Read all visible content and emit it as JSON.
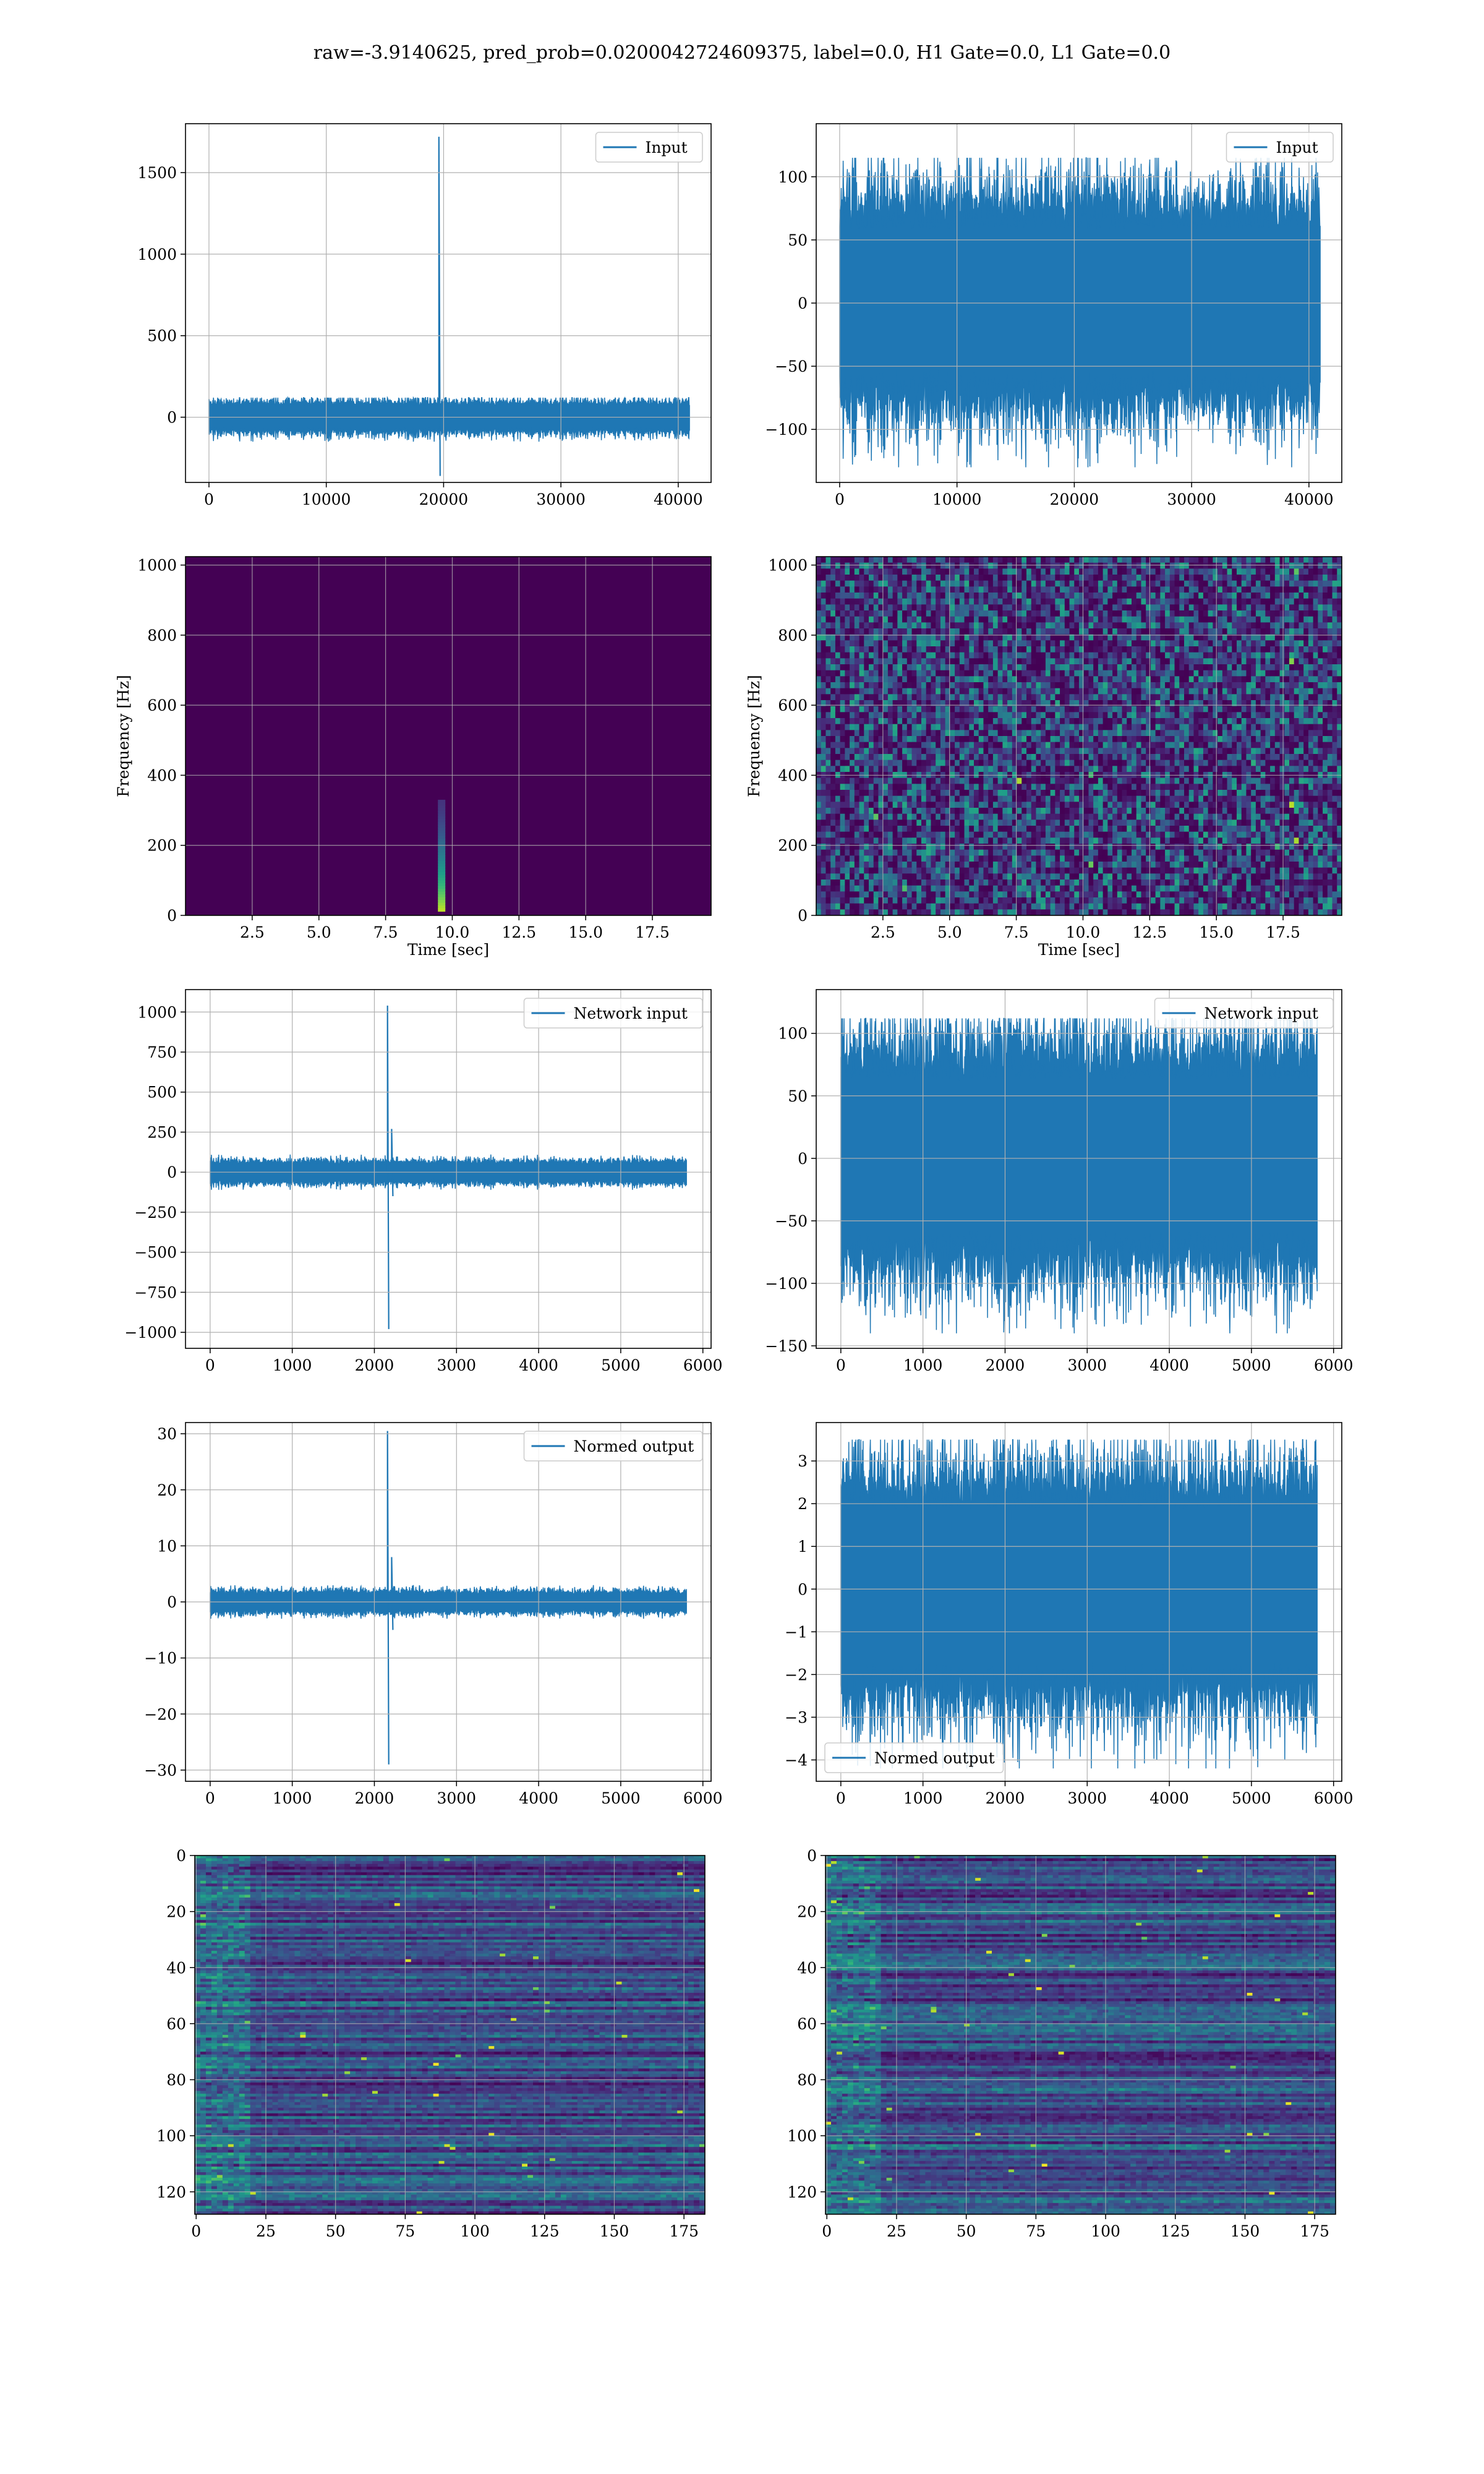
{
  "suptitle": "raw=-3.9140625, pred_prob=0.0200042724609375, label=0.0, H1 Gate=0.0, L1 Gate=0.0",
  "colors": {
    "line": "#1f77b4",
    "grid": "#b0b0b0",
    "viridis_dark": "#440154"
  },
  "chart_data": [
    {
      "id": "h1-input",
      "type": "line",
      "title": "",
      "xlabel": "",
      "ylabel": "",
      "xlim": [
        -2000,
        42800
      ],
      "ylim": [
        -400,
        1800
      ],
      "xticks": [
        0,
        10000,
        20000,
        30000,
        40000
      ],
      "xtick_labels": [
        "0",
        "10000",
        "20000",
        "30000",
        "40000"
      ],
      "yticks": [
        0,
        500,
        1000,
        1500
      ],
      "ytick_labels": [
        "0",
        "500",
        "1000",
        "1500"
      ],
      "grid": true,
      "legend": {
        "loc": "upper right",
        "entries": [
          "Input"
        ]
      },
      "series": [
        {
          "name": "Input",
          "n_samples": 40960,
          "noise_band": [
            -150,
            120
          ],
          "spikes": [
            {
              "x": 19600,
              "values": [
                1720,
                -360
              ]
            }
          ]
        }
      ]
    },
    {
      "id": "l1-input",
      "type": "line",
      "title": "",
      "xlabel": "",
      "ylabel": "",
      "xlim": [
        -2000,
        42800
      ],
      "ylim": [
        -142,
        142
      ],
      "xticks": [
        0,
        10000,
        20000,
        30000,
        40000
      ],
      "xtick_labels": [
        "0",
        "10000",
        "20000",
        "30000",
        "40000"
      ],
      "yticks": [
        -100,
        -50,
        0,
        50,
        100
      ],
      "ytick_labels": [
        "−100",
        "−50",
        "0",
        "50",
        "100"
      ],
      "grid": true,
      "legend": {
        "loc": "upper right",
        "entries": [
          "Input"
        ]
      },
      "series": [
        {
          "name": "Input",
          "n_samples": 40960,
          "noise_band": [
            -130,
            115
          ]
        }
      ]
    },
    {
      "id": "h1-spectrogram",
      "type": "heatmap",
      "title": "",
      "xlabel": "Time [sec]",
      "ylabel": "Frequency [Hz]",
      "xlim": [
        0,
        19.7
      ],
      "ylim": [
        0,
        1024
      ],
      "xticks": [
        2.5,
        5.0,
        7.5,
        10.0,
        12.5,
        15.0,
        17.5
      ],
      "xtick_labels": [
        "2.5",
        "5.0",
        "7.5",
        "10.0",
        "12.5",
        "15.0",
        "17.5"
      ],
      "yticks": [
        0,
        200,
        400,
        600,
        800,
        1000
      ],
      "ytick_labels": [
        "0",
        "200",
        "400",
        "600",
        "800",
        "1000"
      ],
      "grid": true,
      "colormap": "viridis",
      "feature": {
        "time": 9.6,
        "freq_range": [
          20,
          330
        ]
      }
    },
    {
      "id": "l1-spectrogram",
      "type": "heatmap",
      "title": "",
      "xlabel": "Time [sec]",
      "ylabel": "Frequency [Hz]",
      "xlim": [
        0,
        19.7
      ],
      "ylim": [
        0,
        1024
      ],
      "xticks": [
        2.5,
        5.0,
        7.5,
        10.0,
        12.5,
        15.0,
        17.5
      ],
      "xtick_labels": [
        "2.5",
        "5.0",
        "7.5",
        "10.0",
        "12.5",
        "15.0",
        "17.5"
      ],
      "yticks": [
        0,
        200,
        400,
        600,
        800,
        1000
      ],
      "ytick_labels": [
        "0",
        "200",
        "400",
        "600",
        "800",
        "1000"
      ],
      "grid": true,
      "colormap": "viridis"
    },
    {
      "id": "h1-network-input",
      "type": "line",
      "title": "",
      "xlabel": "",
      "ylabel": "",
      "xlim": [
        -300,
        6100
      ],
      "ylim": [
        -1100,
        1140
      ],
      "xticks": [
        0,
        1000,
        2000,
        3000,
        4000,
        5000,
        6000
      ],
      "xtick_labels": [
        "0",
        "1000",
        "2000",
        "3000",
        "4000",
        "5000",
        "6000"
      ],
      "yticks": [
        -1000,
        -750,
        -500,
        -250,
        0,
        250,
        500,
        750,
        1000
      ],
      "ytick_labels": [
        "−1000",
        "−750",
        "−500",
        "−250",
        "0",
        "250",
        "500",
        "750",
        "1000"
      ],
      "grid": true,
      "legend": {
        "loc": "upper right",
        "entries": [
          "Network input"
        ]
      },
      "series": [
        {
          "name": "Network input",
          "n_samples": 5800,
          "noise_band": [
            -110,
            110
          ],
          "spikes": [
            {
              "x": 2160,
              "values": [
                1040,
                -980
              ]
            },
            {
              "x": 2210,
              "values": [
                270,
                -150
              ]
            }
          ]
        }
      ]
    },
    {
      "id": "l1-network-input",
      "type": "line",
      "title": "",
      "xlabel": "",
      "ylabel": "",
      "xlim": [
        -300,
        6100
      ],
      "ylim": [
        -152,
        135
      ],
      "xticks": [
        0,
        1000,
        2000,
        3000,
        4000,
        5000,
        6000
      ],
      "xtick_labels": [
        "0",
        "1000",
        "2000",
        "3000",
        "4000",
        "5000",
        "6000"
      ],
      "yticks": [
        -150,
        -100,
        -50,
        0,
        50,
        100
      ],
      "ytick_labels": [
        "−150",
        "−100",
        "−50",
        "0",
        "50",
        "100"
      ],
      "grid": true,
      "legend": {
        "loc": "upper right",
        "entries": [
          "Network input"
        ]
      },
      "series": [
        {
          "name": "Network input",
          "n_samples": 5800,
          "noise_band": [
            -140,
            112
          ]
        }
      ]
    },
    {
      "id": "h1-normed-output",
      "type": "line",
      "title": "",
      "xlabel": "",
      "ylabel": "",
      "xlim": [
        -300,
        6100
      ],
      "ylim": [
        -32,
        32
      ],
      "xticks": [
        0,
        1000,
        2000,
        3000,
        4000,
        5000,
        6000
      ],
      "xtick_labels": [
        "0",
        "1000",
        "2000",
        "3000",
        "4000",
        "5000",
        "6000"
      ],
      "yticks": [
        -30,
        -20,
        -10,
        0,
        10,
        20,
        30
      ],
      "ytick_labels": [
        "−30",
        "−20",
        "−10",
        "0",
        "10",
        "20",
        "30"
      ],
      "grid": true,
      "legend": {
        "loc": "upper right",
        "entries": [
          "Normed output"
        ]
      },
      "series": [
        {
          "name": "Normed output",
          "n_samples": 5800,
          "noise_band": [
            -3,
            3
          ],
          "spikes": [
            {
              "x": 2160,
              "values": [
                30.5,
                -29
              ]
            },
            {
              "x": 2210,
              "values": [
                8,
                -5
              ]
            }
          ]
        }
      ]
    },
    {
      "id": "l1-normed-output",
      "type": "line",
      "title": "",
      "xlabel": "",
      "ylabel": "",
      "xlim": [
        -300,
        6100
      ],
      "ylim": [
        -4.5,
        3.9
      ],
      "xticks": [
        0,
        1000,
        2000,
        3000,
        4000,
        5000,
        6000
      ],
      "xtick_labels": [
        "0",
        "1000",
        "2000",
        "3000",
        "4000",
        "5000",
        "6000"
      ],
      "yticks": [
        -4,
        -3,
        -2,
        -1,
        0,
        1,
        2,
        3
      ],
      "ytick_labels": [
        "−4",
        "−3",
        "−2",
        "−1",
        "0",
        "1",
        "2",
        "3"
      ],
      "grid": true,
      "legend": {
        "loc": "lower left",
        "entries": [
          "Normed output"
        ]
      },
      "series": [
        {
          "name": "Normed output",
          "n_samples": 5800,
          "noise_band": [
            -4.2,
            3.5
          ]
        }
      ]
    },
    {
      "id": "h1-features",
      "type": "heatmap",
      "title": "",
      "xlabel": "",
      "ylabel": "",
      "xlim": [
        -0.5,
        182.5
      ],
      "ylim": [
        128,
        0
      ],
      "rows": 128,
      "cols": 183,
      "xticks": [
        0,
        25,
        50,
        75,
        100,
        125,
        150,
        175
      ],
      "xtick_labels": [
        "0",
        "25",
        "50",
        "75",
        "100",
        "125",
        "150",
        "175"
      ],
      "yticks": [
        0,
        20,
        40,
        60,
        80,
        100,
        120
      ],
      "ytick_labels": [
        "0",
        "20",
        "40",
        "60",
        "80",
        "100",
        "120"
      ],
      "grid": true,
      "colormap": "viridis"
    },
    {
      "id": "l1-features",
      "type": "heatmap",
      "title": "",
      "xlabel": "",
      "ylabel": "",
      "xlim": [
        -0.5,
        182.5
      ],
      "ylim": [
        128,
        0
      ],
      "rows": 128,
      "cols": 183,
      "xticks": [
        0,
        25,
        50,
        75,
        100,
        125,
        150,
        175
      ],
      "xtick_labels": [
        "0",
        "25",
        "50",
        "75",
        "100",
        "125",
        "150",
        "175"
      ],
      "yticks": [
        0,
        20,
        40,
        60,
        80,
        100,
        120
      ],
      "ytick_labels": [
        "0",
        "20",
        "40",
        "60",
        "80",
        "100",
        "120"
      ],
      "grid": true,
      "colormap": "viridis"
    }
  ]
}
